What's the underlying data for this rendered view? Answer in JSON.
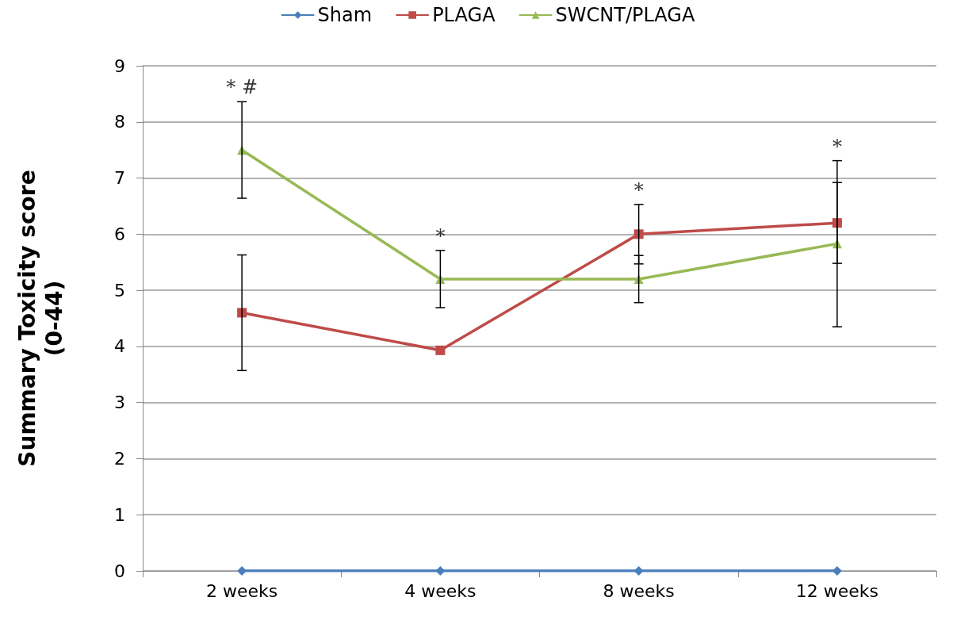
{
  "chart_data": {
    "type": "line",
    "ylabel": "Summary Toxicity score\n(0-44)",
    "categories": [
      "2 weeks",
      "4 weeks",
      "8 weeks",
      "12 weeks"
    ],
    "series": [
      {
        "name": "Sham",
        "color": "#4a7ebb",
        "marker": "diamond",
        "values": [
          0,
          0,
          0,
          0
        ]
      },
      {
        "name": "PLAGA",
        "color": "#be4b48",
        "marker": "square",
        "values": [
          4.6,
          3.93,
          6.0,
          6.2
        ],
        "errors": [
          1.03,
          null,
          0.53,
          0.72
        ]
      },
      {
        "name": "SWCNT/PLAGA",
        "color": "#98b954",
        "marker": "triangle",
        "values": [
          7.5,
          5.2,
          5.2,
          5.83
        ],
        "errors": [
          0.86,
          0.51,
          0.42,
          1.48
        ]
      }
    ],
    "annotations": [
      "* #",
      "*",
      "*",
      "*"
    ],
    "ylim": [
      0,
      9
    ],
    "yticks": [
      0,
      1,
      2,
      3,
      4,
      5,
      6,
      7,
      8,
      9
    ],
    "grid": "y",
    "legend": "top",
    "line_style": "solid"
  }
}
